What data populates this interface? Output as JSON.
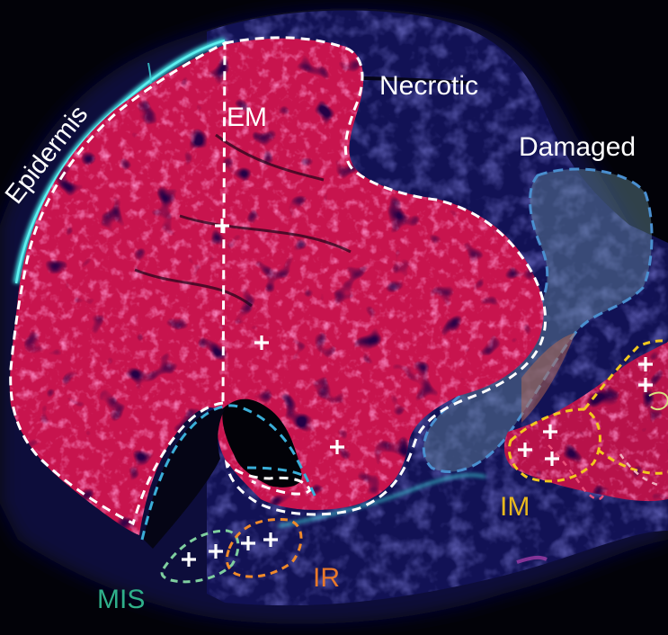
{
  "figure": {
    "labels": {
      "epidermis": "Epidermis",
      "em": "EM",
      "necrotic": "Necrotic",
      "damaged": "Damaged",
      "im": "IM",
      "ir": "IR",
      "mis": "MIS"
    },
    "colors": {
      "background": "#020208",
      "tissue_blue": "#1a1a6a",
      "muscle_red": "#c8144e",
      "muscle_highlight": "#e83a78",
      "epidermis_cyan": "#3fd8dc",
      "em_outline": "#ffffff",
      "damaged_outline": "#4a8fd0",
      "damaged_fill": "#6f98a8",
      "im_outline": "#f2c81e",
      "ir_outline": "#f08a2a",
      "mis_outline": "#7fcf9f",
      "marker": "#ffffff",
      "label_white": "#ffffff",
      "label_im": "#e8b81e",
      "label_ir": "#e8782a",
      "label_mis": "#2fb08a"
    },
    "marker_symbol": "+"
  }
}
